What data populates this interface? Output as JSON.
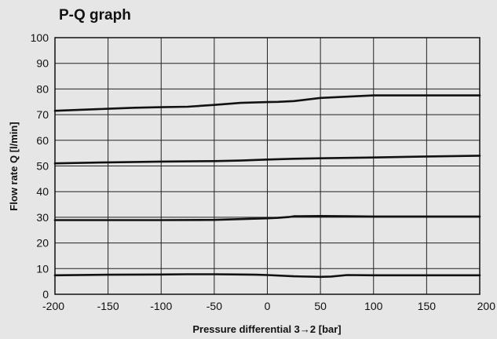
{
  "chart_data": {
    "type": "line",
    "title": "P-Q graph",
    "xlabel": "Pressure differential 3→2 [bar]",
    "ylabel": "Flow rate Q [l/min]",
    "xlim": [
      -200,
      200
    ],
    "ylim": [
      0,
      100
    ],
    "xticks": [
      -200,
      -150,
      -100,
      -50,
      0,
      50,
      100,
      150,
      200
    ],
    "yticks": [
      0,
      10,
      20,
      30,
      40,
      50,
      60,
      70,
      80,
      90,
      100
    ],
    "grid": true,
    "line_color": "#111111",
    "grid_color": "#222222",
    "background": "#e6e6e6",
    "series": [
      {
        "x": [
          -200,
          -150,
          -125,
          -100,
          -75,
          -50,
          -25,
          0,
          10,
          25,
          50,
          75,
          100,
          150,
          200
        ],
        "y": [
          71.5,
          72.3,
          72.7,
          72.9,
          73.1,
          73.8,
          74.6,
          74.9,
          75.0,
          75.3,
          76.5,
          77.0,
          77.5,
          77.5,
          77.5
        ]
      },
      {
        "x": [
          -200,
          -150,
          -100,
          -50,
          -25,
          0,
          25,
          50,
          100,
          150,
          200
        ],
        "y": [
          51.0,
          51.4,
          51.7,
          51.9,
          52.1,
          52.5,
          52.8,
          53.0,
          53.3,
          53.7,
          54.0
        ]
      },
      {
        "x": [
          -200,
          -150,
          -100,
          -50,
          -25,
          0,
          10,
          20,
          25,
          50,
          75,
          100,
          150,
          200
        ],
        "y": [
          28.9,
          28.9,
          28.9,
          29.0,
          29.3,
          29.6,
          29.8,
          30.1,
          30.4,
          30.5,
          30.4,
          30.3,
          30.3,
          30.3
        ]
      },
      {
        "x": [
          -200,
          -150,
          -100,
          -75,
          -50,
          -25,
          -10,
          0,
          25,
          50,
          60,
          75,
          100,
          150,
          200
        ],
        "y": [
          7.4,
          7.6,
          7.7,
          7.8,
          7.8,
          7.7,
          7.6,
          7.5,
          7.0,
          6.8,
          6.9,
          7.5,
          7.4,
          7.4,
          7.4
        ]
      }
    ]
  }
}
